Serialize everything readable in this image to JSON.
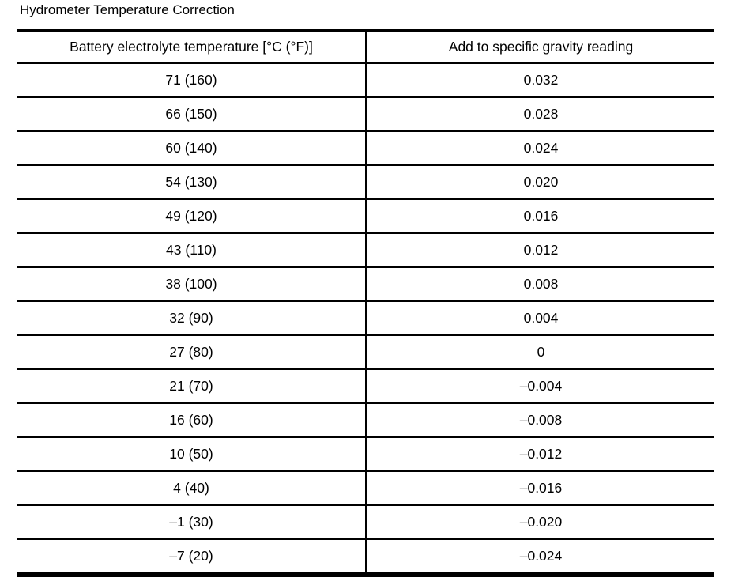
{
  "title": "Hydrometer Temperature Correction",
  "colors": {
    "text": "#000000",
    "background": "#ffffff",
    "border": "#000000"
  },
  "table": {
    "headers": [
      "Battery electrolyte temperature [°C (°F)]",
      "Add to specific gravity reading"
    ],
    "rows": [
      [
        "71 (160)",
        "0.032"
      ],
      [
        "66 (150)",
        "0.028"
      ],
      [
        "60 (140)",
        "0.024"
      ],
      [
        "54 (130)",
        "0.020"
      ],
      [
        "49 (120)",
        "0.016"
      ],
      [
        "43 (110)",
        "0.012"
      ],
      [
        "38 (100)",
        "0.008"
      ],
      [
        "32 (90)",
        "0.004"
      ],
      [
        "27 (80)",
        "0"
      ],
      [
        "21 (70)",
        "–0.004"
      ],
      [
        "16 (60)",
        "–0.008"
      ],
      [
        "10 (50)",
        "–0.012"
      ],
      [
        "4 (40)",
        "–0.016"
      ],
      [
        "–1 (30)",
        "–0.020"
      ],
      [
        "–7 (20)",
        "–0.024"
      ]
    ]
  }
}
